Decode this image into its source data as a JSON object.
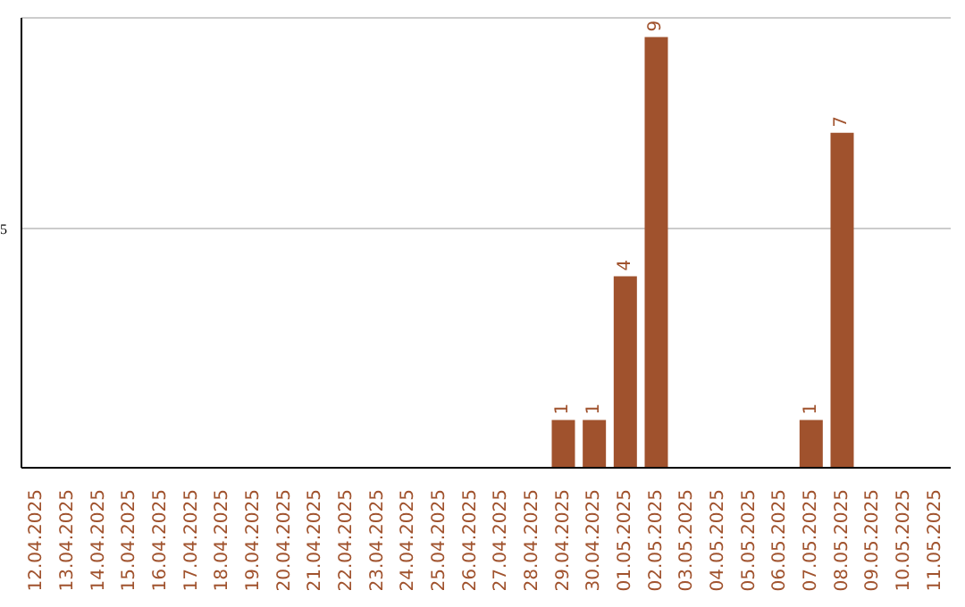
{
  "chart_data": {
    "type": "bar",
    "categories": [
      "12.04.2025",
      "13.04.2025",
      "14.04.2025",
      "15.04.2025",
      "16.04.2025",
      "17.04.2025",
      "18.04.2025",
      "19.04.2025",
      "20.04.2025",
      "21.04.2025",
      "22.04.2025",
      "23.04.2025",
      "24.04.2025",
      "25.04.2025",
      "26.04.2025",
      "27.04.2025",
      "28.04.2025",
      "29.04.2025",
      "30.04.2025",
      "01.05.2025",
      "02.05.2025",
      "03.05.2025",
      "04.05.2025",
      "05.05.2025",
      "06.05.2025",
      "07.05.2025",
      "08.05.2025",
      "09.05.2025",
      "10.05.2025",
      "11.05.2025"
    ],
    "values": [
      null,
      null,
      null,
      null,
      null,
      null,
      null,
      null,
      null,
      null,
      null,
      null,
      null,
      null,
      null,
      null,
      null,
      1,
      1,
      4,
      9,
      null,
      null,
      null,
      null,
      1,
      7,
      null,
      null,
      null
    ],
    "color": "#a0522d",
    "ylim": [
      0,
      9.4
    ],
    "yticks": [
      5
    ],
    "grid": "y",
    "data_labels": true
  }
}
